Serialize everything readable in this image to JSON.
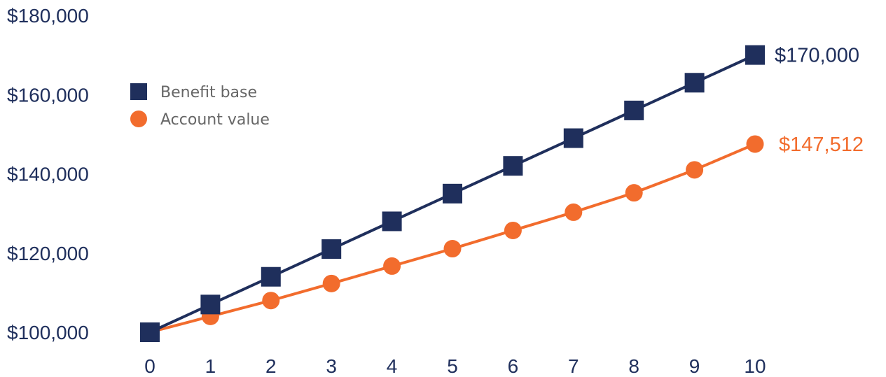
{
  "chart_data": {
    "type": "line",
    "title": "",
    "xlabel": "",
    "ylabel": "",
    "x": [
      0,
      1,
      2,
      3,
      4,
      5,
      6,
      7,
      8,
      9,
      10
    ],
    "xticks": [
      "0",
      "1",
      "2",
      "3",
      "4",
      "5",
      "6",
      "7",
      "8",
      "9",
      "10"
    ],
    "ylim": [
      100000,
      180000
    ],
    "yticks": [
      {
        "value": 100000,
        "label": "$100,000"
      },
      {
        "value": 120000,
        "label": "$120,000"
      },
      {
        "value": 140000,
        "label": "$140,000"
      },
      {
        "value": 160000,
        "label": "$160,000"
      },
      {
        "value": 180000,
        "label": "$180,000"
      }
    ],
    "grid": false,
    "legend_position": "top-left",
    "series": [
      {
        "name": "Benefit base",
        "marker": "square",
        "color": "#1f2f5c",
        "values": [
          100000,
          107000,
          114000,
          121000,
          128000,
          135000,
          142000,
          149000,
          156000,
          163000,
          170000
        ],
        "end_label": "$170,000"
      },
      {
        "name": "Account value",
        "marker": "circle",
        "color": "#f26c2d",
        "values": [
          100000,
          104000,
          108000,
          112300,
          116700,
          121100,
          125700,
          130300,
          135200,
          141000,
          147512
        ],
        "end_label": "$147,512"
      }
    ]
  }
}
